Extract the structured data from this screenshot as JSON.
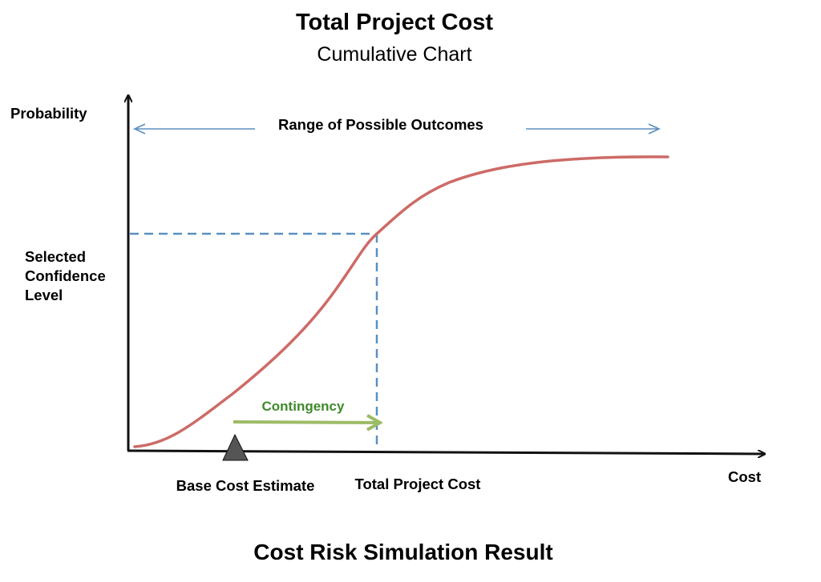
{
  "title": "Total Project Cost",
  "subtitle": "Cumulative Chart",
  "axes": {
    "y_label": "Probability",
    "x_label": "Cost"
  },
  "range_label": "Range of Possible Outcomes",
  "confidence_label": [
    "Selected",
    "Confidence",
    "Level"
  ],
  "contingency_label": "Contingency",
  "base_cost_label": "Base Cost Estimate",
  "total_cost_label": "Total Project Cost",
  "footer": "Cost Risk Simulation Result",
  "colors": {
    "curve": "#cd6b67",
    "dashed_guides": "#5b8fc0",
    "range_arrows": "#5b8fc0",
    "contingency_arrow": "#9dbb66",
    "contingency_text": "#3f8a2c",
    "axes": "#111111",
    "marker": "#444444"
  }
}
